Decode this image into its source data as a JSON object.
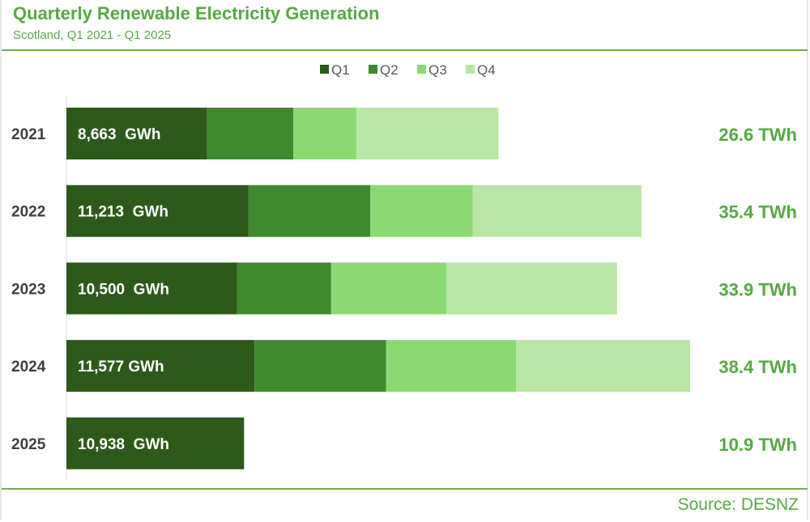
{
  "header": {
    "title": "Quarterly Renewable Electricity Generation",
    "subtitle": "Scotland, Q1 2021 - Q1 2025"
  },
  "footer": {
    "source": "Source: DESNZ"
  },
  "colors": {
    "Q1": "#2d5a1b",
    "Q2": "#3f8a2e",
    "Q3": "#8cd974",
    "Q4": "#b9e5a6",
    "accent": "#56a844"
  },
  "chart_data": {
    "type": "bar",
    "orientation": "horizontal",
    "stacked": true,
    "title": "Quarterly Renewable Electricity Generation",
    "subtitle": "Scotland, Q1 2021 - Q1 2025",
    "legend": {
      "position": "top-center",
      "entries": [
        "Q1",
        "Q2",
        "Q3",
        "Q4"
      ]
    },
    "categories": [
      "2021",
      "2022",
      "2023",
      "2024",
      "2025"
    ],
    "units": "GWh",
    "series": [
      {
        "name": "Q1",
        "values": [
          8663,
          11213,
          10500,
          11577,
          10938
        ]
      },
      {
        "name": "Q2",
        "values": [
          5300,
          7500,
          5800,
          8100,
          null
        ]
      },
      {
        "name": "Q3",
        "values": [
          3900,
          6300,
          7100,
          8000,
          null
        ]
      },
      {
        "name": "Q4",
        "values": [
          8737,
          10387,
          10500,
          10723,
          null
        ]
      }
    ],
    "bar_labels": [
      "8,663  GWh",
      "11,213  GWh",
      "10,500  GWh",
      "11,577 GWh",
      "10,938  GWh"
    ],
    "totals": [
      "26.6 TWh",
      "35.4 TWh",
      "33.9 TWh",
      "38.4 TWh",
      "10.9 TWh"
    ],
    "xlim": [
      0,
      38600
    ],
    "grid": false,
    "source": "Source: DESNZ"
  }
}
